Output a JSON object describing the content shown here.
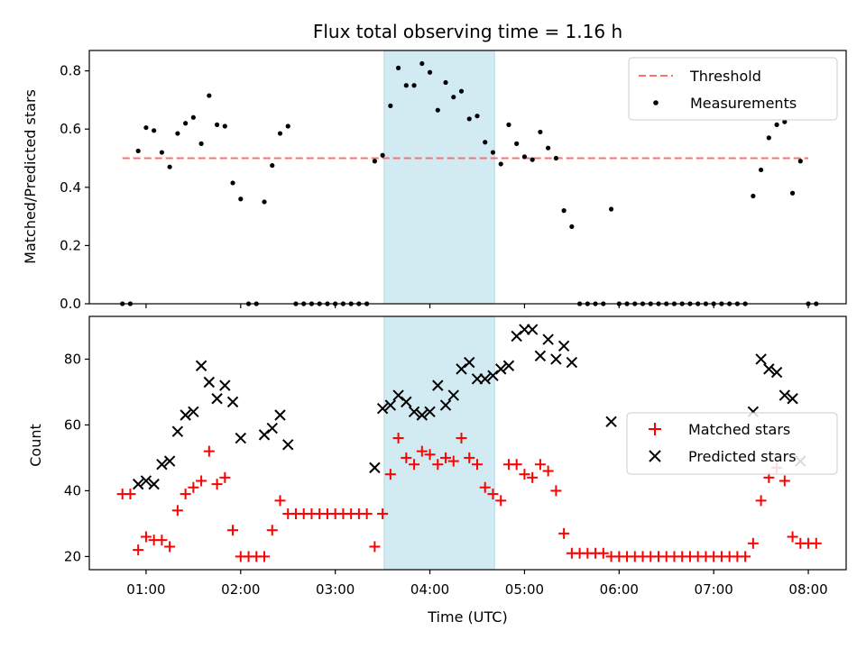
{
  "chart_data": [
    {
      "type": "scatter",
      "title": "Flux total observing time = 1.16 h",
      "xlabel": "",
      "ylabel": "Matched/Predicted stars",
      "ylim": [
        0,
        0.87
      ],
      "grid": false,
      "legend_position": "top-right",
      "highlight_span": {
        "start": "03:31",
        "end": "04:41",
        "color": "#add8e6"
      },
      "threshold": {
        "name": "Threshold",
        "value": 0.5,
        "x_start": "00:45",
        "x_end": "08:00",
        "color": "#ff6f6f"
      },
      "series": [
        {
          "name": "Measurements",
          "color": "#000000",
          "points": [
            [
              "00:45",
              0
            ],
            [
              "00:50",
              0
            ],
            [
              "00:55",
              0.525
            ],
            [
              "01:00",
              0.605
            ],
            [
              "01:05",
              0.595
            ],
            [
              "01:10",
              0.52
            ],
            [
              "01:15",
              0.47
            ],
            [
              "01:20",
              0.585
            ],
            [
              "01:25",
              0.62
            ],
            [
              "01:30",
              0.64
            ],
            [
              "01:35",
              0.55
            ],
            [
              "01:40",
              0.715
            ],
            [
              "01:45",
              0.615
            ],
            [
              "01:50",
              0.61
            ],
            [
              "01:55",
              0.415
            ],
            [
              "02:00",
              0.36
            ],
            [
              "02:05",
              0
            ],
            [
              "02:10",
              0
            ],
            [
              "02:15",
              0.35
            ],
            [
              "02:20",
              0.475
            ],
            [
              "02:25",
              0.585
            ],
            [
              "02:30",
              0.61
            ],
            [
              "02:35",
              0
            ],
            [
              "02:40",
              0
            ],
            [
              "02:45",
              0
            ],
            [
              "02:50",
              0
            ],
            [
              "02:55",
              0
            ],
            [
              "03:00",
              0
            ],
            [
              "03:05",
              0
            ],
            [
              "03:10",
              0
            ],
            [
              "03:15",
              0
            ],
            [
              "03:20",
              0
            ],
            [
              "03:25",
              0.49
            ],
            [
              "03:30",
              0.51
            ],
            [
              "03:35",
              0.68
            ],
            [
              "03:40",
              0.81
            ],
            [
              "03:45",
              0.75
            ],
            [
              "03:50",
              0.75
            ],
            [
              "03:55",
              0.825
            ],
            [
              "04:00",
              0.795
            ],
            [
              "04:05",
              0.665
            ],
            [
              "04:10",
              0.76
            ],
            [
              "04:15",
              0.71
            ],
            [
              "04:20",
              0.73
            ],
            [
              "04:25",
              0.635
            ],
            [
              "04:30",
              0.645
            ],
            [
              "04:35",
              0.555
            ],
            [
              "04:40",
              0.52
            ],
            [
              "04:45",
              0.48
            ],
            [
              "04:50",
              0.615
            ],
            [
              "04:55",
              0.55
            ],
            [
              "05:00",
              0.505
            ],
            [
              "05:05",
              0.495
            ],
            [
              "05:10",
              0.59
            ],
            [
              "05:15",
              0.535
            ],
            [
              "05:20",
              0.5
            ],
            [
              "05:25",
              0.32
            ],
            [
              "05:30",
              0.265
            ],
            [
              "05:35",
              0
            ],
            [
              "05:40",
              0
            ],
            [
              "05:45",
              0
            ],
            [
              "05:50",
              0
            ],
            [
              "05:55",
              0.325
            ],
            [
              "06:00",
              0
            ],
            [
              "06:05",
              0
            ],
            [
              "06:10",
              0
            ],
            [
              "06:15",
              0
            ],
            [
              "06:20",
              0
            ],
            [
              "06:25",
              0
            ],
            [
              "06:30",
              0
            ],
            [
              "06:35",
              0
            ],
            [
              "06:40",
              0
            ],
            [
              "06:45",
              0
            ],
            [
              "06:50",
              0
            ],
            [
              "06:55",
              0
            ],
            [
              "07:00",
              0
            ],
            [
              "07:05",
              0
            ],
            [
              "07:10",
              0
            ],
            [
              "07:15",
              0
            ],
            [
              "07:20",
              0
            ],
            [
              "07:25",
              0.37
            ],
            [
              "07:30",
              0.46
            ],
            [
              "07:35",
              0.57
            ],
            [
              "07:40",
              0.615
            ],
            [
              "07:45",
              0.625
            ],
            [
              "07:50",
              0.38
            ],
            [
              "07:55",
              0.49
            ],
            [
              "08:00",
              0
            ],
            [
              "08:05",
              0
            ]
          ]
        }
      ]
    },
    {
      "type": "scatter",
      "title": "",
      "xlabel": "Time (UTC)",
      "ylabel": "Count",
      "ylim": [
        16,
        93
      ],
      "grid": false,
      "legend_position": "center-right",
      "highlight_span": {
        "start": "03:31",
        "end": "04:41",
        "color": "#add8e6"
      },
      "series": [
        {
          "name": "Matched stars",
          "color": "#ff0000",
          "marker": "+",
          "points": [
            [
              "00:45",
              39
            ],
            [
              "00:50",
              39
            ],
            [
              "00:55",
              22
            ],
            [
              "01:00",
              26
            ],
            [
              "01:05",
              25
            ],
            [
              "01:10",
              25
            ],
            [
              "01:15",
              23
            ],
            [
              "01:20",
              34
            ],
            [
              "01:25",
              39
            ],
            [
              "01:30",
              41
            ],
            [
              "01:35",
              43
            ],
            [
              "01:40",
              52
            ],
            [
              "01:45",
              42
            ],
            [
              "01:50",
              44
            ],
            [
              "01:55",
              28
            ],
            [
              "02:00",
              20
            ],
            [
              "02:05",
              20
            ],
            [
              "02:10",
              20
            ],
            [
              "02:15",
              20
            ],
            [
              "02:20",
              28
            ],
            [
              "02:25",
              37
            ],
            [
              "02:30",
              33
            ],
            [
              "02:35",
              33
            ],
            [
              "02:40",
              33
            ],
            [
              "02:45",
              33
            ],
            [
              "02:50",
              33
            ],
            [
              "02:55",
              33
            ],
            [
              "03:00",
              33
            ],
            [
              "03:05",
              33
            ],
            [
              "03:10",
              33
            ],
            [
              "03:15",
              33
            ],
            [
              "03:20",
              33
            ],
            [
              "03:25",
              23
            ],
            [
              "03:30",
              33
            ],
            [
              "03:35",
              45
            ],
            [
              "03:40",
              56
            ],
            [
              "03:45",
              50
            ],
            [
              "03:50",
              48
            ],
            [
              "03:55",
              52
            ],
            [
              "04:00",
              51
            ],
            [
              "04:05",
              48
            ],
            [
              "04:10",
              50
            ],
            [
              "04:15",
              49
            ],
            [
              "04:20",
              56
            ],
            [
              "04:25",
              50
            ],
            [
              "04:30",
              48
            ],
            [
              "04:35",
              41
            ],
            [
              "04:40",
              39
            ],
            [
              "04:45",
              37
            ],
            [
              "04:50",
              48
            ],
            [
              "04:55",
              48
            ],
            [
              "05:00",
              45
            ],
            [
              "05:05",
              44
            ],
            [
              "05:10",
              48
            ],
            [
              "05:15",
              46
            ],
            [
              "05:20",
              40
            ],
            [
              "05:25",
              27
            ],
            [
              "05:30",
              21
            ],
            [
              "05:35",
              21
            ],
            [
              "05:40",
              21
            ],
            [
              "05:45",
              21
            ],
            [
              "05:50",
              21
            ],
            [
              "05:55",
              20
            ],
            [
              "06:00",
              20
            ],
            [
              "06:05",
              20
            ],
            [
              "06:10",
              20
            ],
            [
              "06:15",
              20
            ],
            [
              "06:20",
              20
            ],
            [
              "06:25",
              20
            ],
            [
              "06:30",
              20
            ],
            [
              "06:35",
              20
            ],
            [
              "06:40",
              20
            ],
            [
              "06:45",
              20
            ],
            [
              "06:50",
              20
            ],
            [
              "06:55",
              20
            ],
            [
              "07:00",
              20
            ],
            [
              "07:05",
              20
            ],
            [
              "07:10",
              20
            ],
            [
              "07:15",
              20
            ],
            [
              "07:20",
              20
            ],
            [
              "07:25",
              24
            ],
            [
              "07:30",
              37
            ],
            [
              "07:35",
              44
            ],
            [
              "07:40",
              47
            ],
            [
              "07:45",
              43
            ],
            [
              "07:50",
              26
            ],
            [
              "07:55",
              24
            ],
            [
              "08:00",
              24
            ],
            [
              "08:05",
              24
            ]
          ]
        },
        {
          "name": "Predicted stars",
          "color": "#000000",
          "marker": "x",
          "points": [
            [
              "00:55",
              42
            ],
            [
              "01:00",
              43
            ],
            [
              "01:05",
              42
            ],
            [
              "01:10",
              48
            ],
            [
              "01:15",
              49
            ],
            [
              "01:20",
              58
            ],
            [
              "01:25",
              63
            ],
            [
              "01:30",
              64
            ],
            [
              "01:35",
              78
            ],
            [
              "01:40",
              73
            ],
            [
              "01:45",
              68
            ],
            [
              "01:50",
              72
            ],
            [
              "01:55",
              67
            ],
            [
              "02:00",
              56
            ],
            [
              "02:15",
              57
            ],
            [
              "02:20",
              59
            ],
            [
              "02:25",
              63
            ],
            [
              "02:30",
              54
            ],
            [
              "03:25",
              47
            ],
            [
              "03:30",
              65
            ],
            [
              "03:35",
              66
            ],
            [
              "03:40",
              69
            ],
            [
              "03:45",
              67
            ],
            [
              "03:50",
              64
            ],
            [
              "03:55",
              63
            ],
            [
              "04:00",
              64
            ],
            [
              "04:05",
              72
            ],
            [
              "04:10",
              66
            ],
            [
              "04:15",
              69
            ],
            [
              "04:20",
              77
            ],
            [
              "04:25",
              79
            ],
            [
              "04:30",
              74
            ],
            [
              "04:35",
              74
            ],
            [
              "04:40",
              75
            ],
            [
              "04:45",
              77
            ],
            [
              "04:50",
              78
            ],
            [
              "04:55",
              87
            ],
            [
              "05:00",
              89
            ],
            [
              "05:05",
              89
            ],
            [
              "05:10",
              81
            ],
            [
              "05:15",
              86
            ],
            [
              "05:20",
              80
            ],
            [
              "05:25",
              84
            ],
            [
              "05:30",
              79
            ],
            [
              "05:55",
              61
            ],
            [
              "07:25",
              64
            ],
            [
              "07:30",
              80
            ],
            [
              "07:35",
              77
            ],
            [
              "07:40",
              76
            ],
            [
              "07:45",
              69
            ],
            [
              "07:50",
              68
            ],
            [
              "07:55",
              49
            ]
          ]
        }
      ]
    }
  ],
  "x_ticks": [
    "01:00",
    "02:00",
    "03:00",
    "04:00",
    "05:00",
    "06:00",
    "07:00",
    "08:00"
  ],
  "top_y_ticks": [
    "0.0",
    "0.2",
    "0.4",
    "0.6",
    "0.8"
  ],
  "bottom_y_ticks": [
    "20",
    "40",
    "60",
    "80"
  ]
}
